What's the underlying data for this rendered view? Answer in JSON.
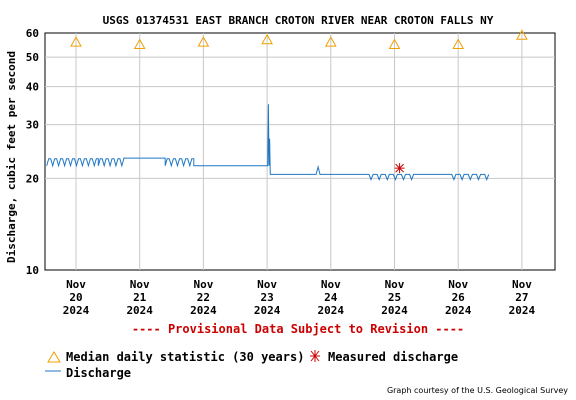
{
  "colors": {
    "discharge": "#1f77c4",
    "median_marker": "#f0a000",
    "measured_marker": "#cc0000",
    "provisional": "#cc0000",
    "grid": "#c8c8c8"
  },
  "chart_data": {
    "type": "line",
    "title": "USGS 01374531 EAST BRANCH CROTON RIVER NEAR CROTON FALLS NY",
    "ylabel": "Discharge, cubic feet per second",
    "xlabel": "",
    "y_scale": "log",
    "ylim": [
      10,
      60
    ],
    "y_ticks": [
      "60",
      "50",
      "40",
      "30",
      "20",
      "10"
    ],
    "y_tick_values": [
      60,
      50,
      40,
      30,
      20,
      10
    ],
    "x_ticks": [
      {
        "line1": "Nov",
        "line2": "20",
        "line3": "2024"
      },
      {
        "line1": "Nov",
        "line2": "21",
        "line3": "2024"
      },
      {
        "line1": "Nov",
        "line2": "22",
        "line3": "2024"
      },
      {
        "line1": "Nov",
        "line2": "23",
        "line3": "2024"
      },
      {
        "line1": "Nov",
        "line2": "24",
        "line3": "2024"
      },
      {
        "line1": "Nov",
        "line2": "25",
        "line3": "2024"
      },
      {
        "line1": "Nov",
        "line2": "26",
        "line3": "2024"
      },
      {
        "line1": "Nov",
        "line2": "27",
        "line3": "2024"
      }
    ],
    "grid": true,
    "series": [
      {
        "name": "Median daily statistic (30 years)",
        "kind": "marker-triangle",
        "x_days": [
          0,
          1,
          2,
          3,
          4,
          5,
          6,
          7
        ],
        "values": [
          56,
          55,
          56,
          57,
          56,
          55,
          55,
          59
        ]
      },
      {
        "name": "Measured discharge",
        "kind": "marker-asterisk",
        "x_days": [
          5.08
        ],
        "values": [
          21.6
        ]
      },
      {
        "name": "Discharge",
        "kind": "line",
        "segments": [
          {
            "x0": -0.46,
            "x1": 0.35,
            "low": 22.0,
            "high": 23.2
          },
          {
            "x0": 0.35,
            "x1": 0.75,
            "low": 22.0,
            "high": 23.2
          },
          {
            "x0": 0.75,
            "x1": 1.4,
            "low": 23.3,
            "high": 23.3
          },
          {
            "x0": 1.4,
            "x1": 1.85,
            "low": 22.0,
            "high": 23.2
          },
          {
            "x0": 1.85,
            "x1": 2.95,
            "low": 22.0,
            "high": 22.0
          }
        ],
        "peak": {
          "x": 3.02,
          "y": 35.0
        },
        "after_peak_level": 20.6,
        "small_bump": {
          "x": 3.8,
          "y": 21.8
        },
        "tail_segment": {
          "x0": 4.6,
          "x1": 5.3,
          "low": 19.8,
          "high": 20.6
        },
        "tail_segment_2": {
          "x0": 5.9,
          "x1": 6.48,
          "low": 19.8,
          "high": 20.6
        }
      }
    ],
    "legend_placement": "bottom-left"
  },
  "provisional_text": "---- Provisional Data Subject to Revision ----",
  "legend": {
    "median_label": "Median daily statistic (30 years)",
    "measured_label": "Measured discharge",
    "discharge_label": "Discharge"
  },
  "credit": "Graph courtesy of the U.S. Geological Survey"
}
